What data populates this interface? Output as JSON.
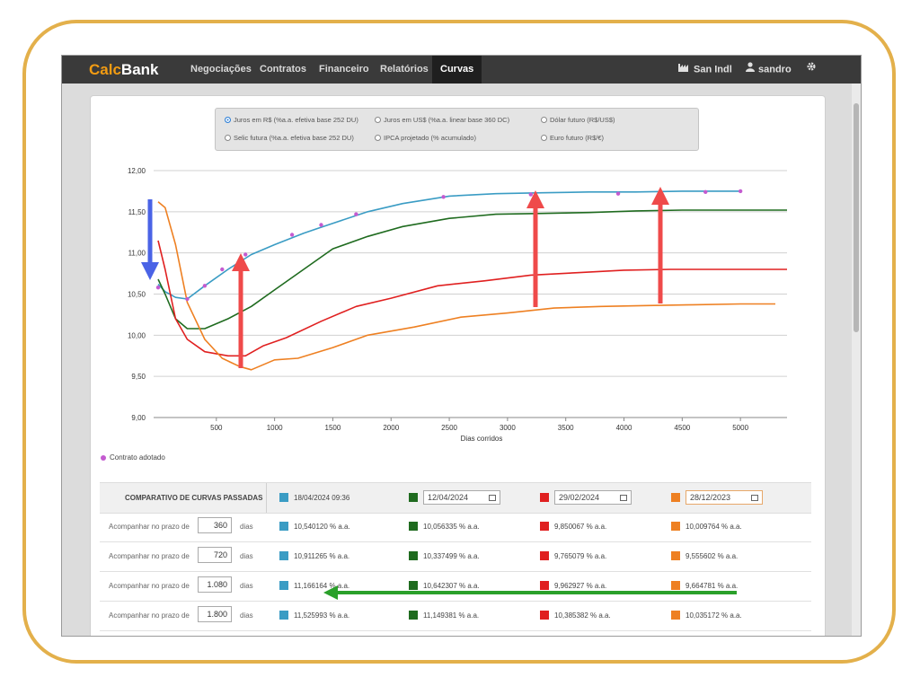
{
  "app": {
    "logo_calc": "Calc",
    "logo_bank": "Bank",
    "nav": [
      "Negociações",
      "Contratos",
      "Financeiro",
      "Relatórios",
      "Curvas"
    ],
    "active_nav": "Curvas",
    "company": "San Indl",
    "user": "sandro"
  },
  "selector": {
    "options": [
      {
        "label": "Juros em R$ (%a.a. efetiva base 252 DU)",
        "selected": true
      },
      {
        "label": "Juros em US$ (%a.a. linear base 360 DC)",
        "selected": false
      },
      {
        "label": "Dólar futuro (R$/US$)",
        "selected": false
      },
      {
        "label": "Selic futura (%a.a. efetiva base 252 DU)",
        "selected": false
      },
      {
        "label": "IPCA projetado (% acumulado)",
        "selected": false
      },
      {
        "label": "Euro futuro (R$/€)",
        "selected": false
      }
    ]
  },
  "chart_data": {
    "type": "line",
    "xlabel": "Dias corridos",
    "ylabel": "",
    "xlim": [
      0,
      5400
    ],
    "ylim": [
      9.0,
      12.0
    ],
    "x_ticks": [
      500,
      1000,
      1500,
      2000,
      2500,
      3000,
      3500,
      4000,
      4500,
      5000
    ],
    "y_ticks": [
      "12,00",
      "11,50",
      "11,00",
      "10,50",
      "10,00",
      "9,50",
      "9,00"
    ],
    "y_tick_values": [
      12.0,
      11.5,
      11.0,
      10.5,
      10.0,
      9.5,
      9.0
    ],
    "grid": true,
    "series": [
      {
        "name": "18/04/2024 09:36",
        "color": "#3a9cc4",
        "x": [
          0,
          60,
          150,
          250,
          400,
          600,
          800,
          1000,
          1250,
          1500,
          1800,
          2100,
          2500,
          2900,
          3300,
          3700,
          4100,
          4500,
          5000
        ],
        "y": [
          10.62,
          10.53,
          10.46,
          10.44,
          10.6,
          10.8,
          10.98,
          11.1,
          11.24,
          11.36,
          11.5,
          11.6,
          11.69,
          11.72,
          11.73,
          11.74,
          11.74,
          11.75,
          11.75
        ]
      },
      {
        "name": "12/04/2024",
        "color": "#1f6b1f",
        "x": [
          0,
          60,
          150,
          250,
          400,
          600,
          800,
          1000,
          1250,
          1500,
          1800,
          2100,
          2500,
          2900,
          3300,
          3700,
          4100,
          4500,
          5000,
          5400
        ],
        "y": [
          10.68,
          10.5,
          10.2,
          10.08,
          10.08,
          10.2,
          10.35,
          10.55,
          10.8,
          11.05,
          11.2,
          11.32,
          11.42,
          11.47,
          11.48,
          11.49,
          11.51,
          11.52,
          11.52,
          11.52
        ]
      },
      {
        "name": "29/02/2024",
        "color": "#e02020",
        "x": [
          0,
          60,
          150,
          250,
          400,
          600,
          750,
          900,
          1100,
          1400,
          1700,
          2000,
          2400,
          2800,
          3200,
          3600,
          4000,
          4400,
          4800,
          5400
        ],
        "y": [
          11.15,
          10.8,
          10.2,
          9.95,
          9.8,
          9.75,
          9.75,
          9.87,
          9.97,
          10.17,
          10.35,
          10.45,
          10.6,
          10.66,
          10.73,
          10.76,
          10.79,
          10.8,
          10.8,
          10.8
        ]
      },
      {
        "name": "28/12/2023",
        "color": "#ee8022",
        "x": [
          0,
          60,
          150,
          250,
          400,
          550,
          700,
          800,
          1000,
          1200,
          1500,
          1800,
          2200,
          2600,
          3000,
          3400,
          3800,
          4200,
          4600,
          5000,
          5300
        ],
        "y": [
          11.62,
          11.55,
          11.1,
          10.4,
          9.95,
          9.72,
          9.62,
          9.58,
          9.7,
          9.72,
          9.85,
          10.0,
          10.1,
          10.22,
          10.27,
          10.33,
          10.35,
          10.36,
          10.37,
          10.38,
          10.38
        ]
      }
    ],
    "adopted_contracts": {
      "x": [
        0,
        250,
        400,
        550,
        750,
        1150,
        1400,
        1700,
        2450,
        3200,
        3950,
        4700,
        5000
      ],
      "y": [
        10.58,
        10.44,
        10.6,
        10.8,
        10.98,
        11.22,
        11.34,
        11.47,
        11.68,
        11.71,
        11.72,
        11.74,
        11.75
      ]
    }
  },
  "legend": {
    "adopted_label": "Contrato adotado"
  },
  "comparison": {
    "title": "COMPARATIVO DE CURVAS PASSADAS",
    "headers": [
      {
        "label": "18/04/2024 09:36",
        "color": "#3a9cc4",
        "is_input": false
      },
      {
        "label": "12/04/2024",
        "color": "#1f6b1f",
        "is_input": true
      },
      {
        "label": "29/02/2024",
        "color": "#e02020",
        "is_input": true
      },
      {
        "label": "28/12/2023",
        "color": "#ee8022",
        "is_input": true
      }
    ],
    "row_label": "Acompanhar no prazo de",
    "unit": "dias",
    "rows": [
      {
        "days": "360",
        "values": [
          "10,540120 % a.a.",
          "10,056335 % a.a.",
          "9,850067 % a.a.",
          "10,009764 % a.a."
        ]
      },
      {
        "days": "720",
        "values": [
          "10,911265 % a.a.",
          "10,337499 % a.a.",
          "9,765079 % a.a.",
          "9,555602 % a.a."
        ]
      },
      {
        "days": "1.080",
        "values": [
          "11,166164 % a.a.",
          "10,642307 % a.a.",
          "9,962927 % a.a.",
          "9,664781 % a.a."
        ]
      },
      {
        "days": "1.800",
        "values": [
          "11,525993 % a.a.",
          "11,149381 % a.a.",
          "10,385382 % a.a.",
          "10,035172 % a.a."
        ]
      }
    ]
  },
  "colors": {
    "accent_orange": "#f39c12",
    "frame": "#e3b04b",
    "arrow_red": "#ef4a4a",
    "arrow_blue": "#4a63e6",
    "arrow_green": "#2aa02a"
  }
}
